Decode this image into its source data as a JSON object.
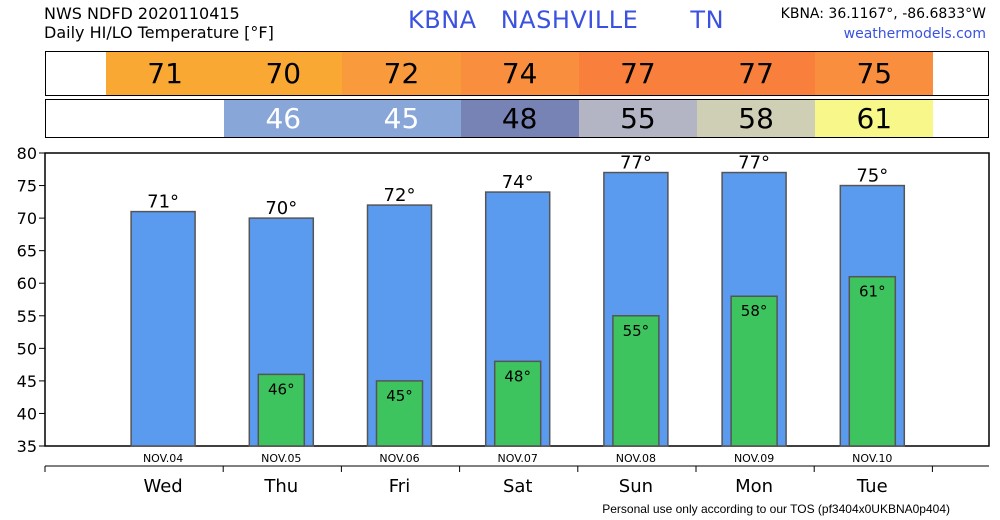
{
  "header": {
    "line1": "NWS NDFD 2020110415",
    "line2": "Daily HI/LO Temperature [°F]",
    "station": "KBNA",
    "city": "NASHVILLE",
    "state": "TN",
    "coords": "KBNA: 36.1167°, -86.6833°W",
    "site": "weathermodels.com"
  },
  "hi_strip": {
    "colors": [
      "#f9a834",
      "#f9a834",
      "#f99a3c",
      "#f98f3e",
      "#f9803c",
      "#f9803c",
      "#f98f3e"
    ]
  },
  "lo_strip": {
    "colors": [
      "#88a7d8",
      "#88a7d8",
      "#7883b5",
      "#b3b4c4",
      "#cfcfb5",
      "#f7f78a"
    ]
  },
  "chart_data": {
    "type": "bar",
    "categories": [
      "NOV.04",
      "NOV.05",
      "NOV.06",
      "NOV.07",
      "NOV.08",
      "NOV.09",
      "NOV.10"
    ],
    "days": [
      "Wed",
      "Thu",
      "Fri",
      "Sat",
      "Sun",
      "Mon",
      "Tue"
    ],
    "series": [
      {
        "values": [
          71,
          70,
          72,
          74,
          77,
          77,
          75
        ],
        "color": "#5a9bef"
      },
      {
        "values": [
          null,
          46,
          45,
          48,
          55,
          58,
          61
        ],
        "color": "#3ec45e"
      }
    ],
    "hi_labels": [
      "71°",
      "70°",
      "72°",
      "74°",
      "77°",
      "77°",
      "75°"
    ],
    "lo_labels": [
      "",
      "46°",
      "45°",
      "48°",
      "55°",
      "58°",
      "61°"
    ],
    "ylim": [
      35,
      80
    ],
    "yticks": [
      35,
      40,
      45,
      50,
      55,
      60,
      65,
      70,
      75,
      80
    ],
    "grid": false
  },
  "footer": "Personal use only according to our TOS (pf3404x0UKBNA0p404)"
}
